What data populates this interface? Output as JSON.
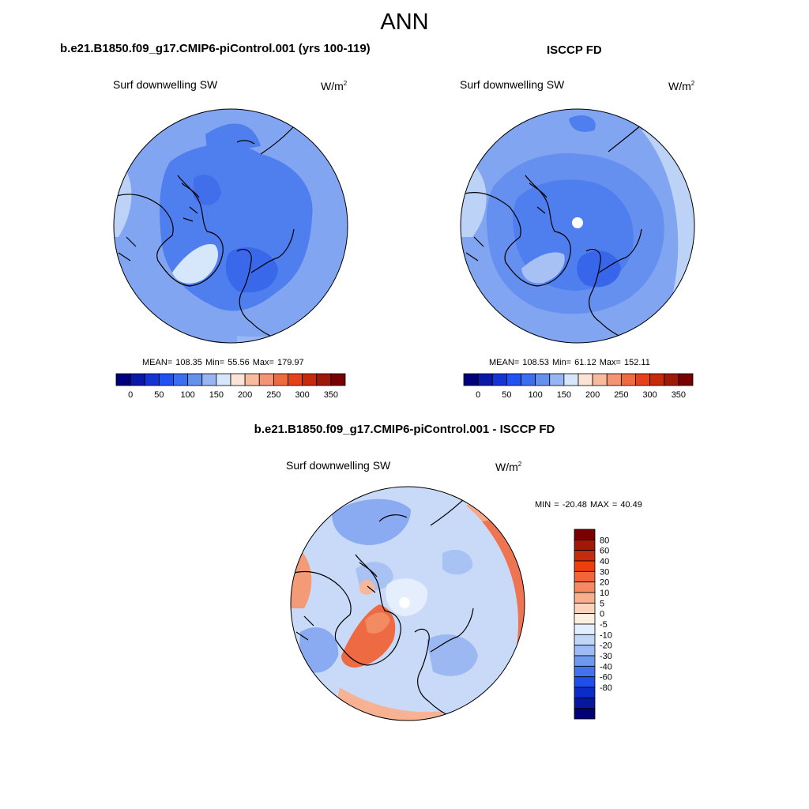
{
  "page": {
    "title": "ANN"
  },
  "panels": [
    {
      "title": "b.e21.B1850.f09_g17.CMIP6-piControl.001 (yrs 100-119)",
      "variable": "Surf downwelling SW",
      "units_base": "W/m",
      "units_exp": "2",
      "stats": "MEAN= 108.35  Min=  55.56  Max= 179.97",
      "colorbar_ticks": [
        "0",
        "50",
        "100",
        "150",
        "200",
        "250",
        "300",
        "350"
      ],
      "colorbar_colors": [
        "#00007f",
        "#0a18a8",
        "#1435d2",
        "#1f52f0",
        "#3b6ef2",
        "#6490f0",
        "#97b5f2",
        "#d6e6fb",
        "#fde3d5",
        "#f9bb9e",
        "#f59473",
        "#ef6a3f",
        "#e3421b",
        "#c52a0c",
        "#a01806",
        "#7a0000"
      ]
    },
    {
      "title": "ISCCP FD",
      "variable": "Surf downwelling SW",
      "units_base": "W/m",
      "units_exp": "2",
      "stats": "MEAN= 108.53  Min=  61.12  Max= 152.11",
      "colorbar_ticks": [
        "0",
        "50",
        "100",
        "150",
        "200",
        "250",
        "300",
        "350"
      ],
      "colorbar_colors": [
        "#00007f",
        "#0a18a8",
        "#1435d2",
        "#1f52f0",
        "#3b6ef2",
        "#6490f0",
        "#97b5f2",
        "#d6e6fb",
        "#fde3d5",
        "#f9bb9e",
        "#f59473",
        "#ef6a3f",
        "#e3421b",
        "#c52a0c",
        "#a01806",
        "#7a0000"
      ]
    },
    {
      "title": "b.e21.B1850.f09_g17.CMIP6-piControl.001 - ISCCP FD",
      "variable": "Surf downwelling SW",
      "units_base": "W/m",
      "units_exp": "2",
      "stats": "MIN = -20.48 MAX =  40.49",
      "colorbar_ticks": [
        "80",
        "60",
        "40",
        "30",
        "20",
        "10",
        "5",
        "0",
        "-5",
        "-10",
        "-20",
        "-30",
        "-40",
        "-60",
        "-80"
      ],
      "colorbar_colors": [
        "#7a0000",
        "#a01806",
        "#c52a0c",
        "#ee3e0e",
        "#f2643a",
        "#f58a60",
        "#f8af8e",
        "#fbd2bb",
        "#fdeee2",
        "#e3eefc",
        "#c2d6f8",
        "#9bbcf4",
        "#6f98f0",
        "#4272ef",
        "#1f4ee9",
        "#0b2cc6",
        "#0817a0",
        "#000078"
      ]
    }
  ]
}
